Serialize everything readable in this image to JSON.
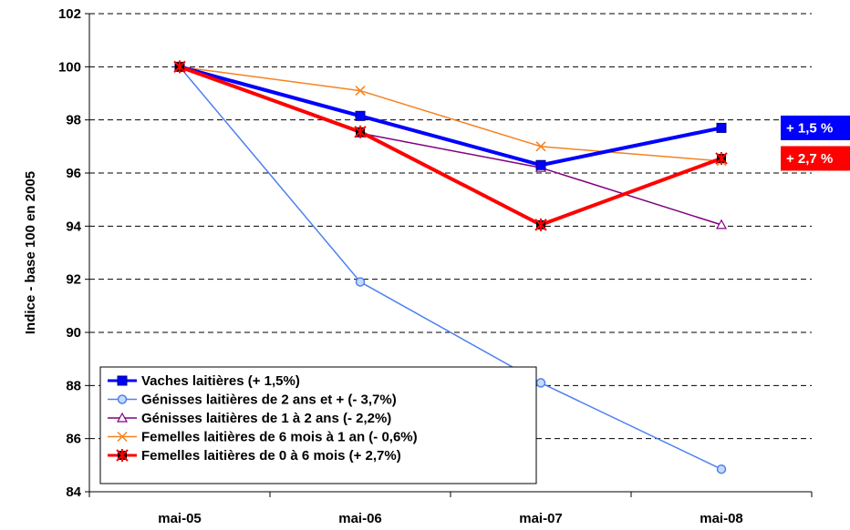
{
  "chart_data": {
    "type": "line",
    "title": "",
    "xlabel": "",
    "ylabel": "Indice - base 100 en 2005",
    "categories": [
      "mai-05",
      "mai-06",
      "mai-07",
      "mai-08"
    ],
    "ylim": [
      84,
      102
    ],
    "yticks": [
      84,
      86,
      88,
      90,
      92,
      94,
      96,
      98,
      100,
      102
    ],
    "grid": "horizontal dashed",
    "legend_position": "bottom-left",
    "series": [
      {
        "name": "Vaches laitières (+ 1,5%)",
        "values": [
          100,
          98.15,
          96.3,
          97.7
        ],
        "color": "#0000ff",
        "marker": "square"
      },
      {
        "name": "Génisses laitières de 2 ans et + (- 3,7%)",
        "values": [
          100,
          91.9,
          88.1,
          84.85
        ],
        "color": "#4f81f0",
        "marker": "circle"
      },
      {
        "name": "Génisses laitières de 1 à 2 ans (- 2,2%)",
        "values": [
          100,
          97.5,
          96.2,
          94.05
        ],
        "color": "#800080",
        "marker": "triangle"
      },
      {
        "name": "Femelles laitières de 6 mois à 1 an (- 0,6%)",
        "values": [
          100,
          99.1,
          97.0,
          96.45
        ],
        "color": "#f58220",
        "marker": "x"
      },
      {
        "name": "Femelles laitières de 0 à 6 mois (+ 2,7%)",
        "values": [
          100,
          97.55,
          94.05,
          96.55
        ],
        "color": "#ff0000",
        "marker": "star"
      }
    ],
    "annotations": [
      {
        "text": "+ 1,5 %",
        "series": 0,
        "background": "#0000ff"
      },
      {
        "text": "+ 2,7 %",
        "series": 4,
        "background": "#ff0000"
      }
    ]
  }
}
